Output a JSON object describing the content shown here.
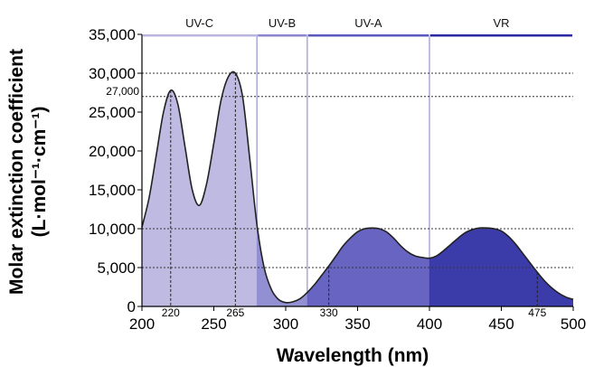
{
  "chart_data": {
    "type": "area",
    "xlabel": "Wavelength (nm)",
    "ylabel_line1": "Molar extinction coefficient",
    "ylabel_line2": "(L·mol⁻¹·cm⁻¹)",
    "xlim": [
      200,
      500
    ],
    "ylim": [
      0,
      35000
    ],
    "x_ticks": [
      200,
      250,
      300,
      350,
      400,
      450,
      500
    ],
    "y_ticks": [
      0,
      5000,
      10000,
      15000,
      20000,
      25000,
      30000,
      35000
    ],
    "y_tick_labels": [
      "0",
      "5,000",
      "10,000",
      "15,000",
      "20,000",
      "25,000",
      "30,000",
      "35,000"
    ],
    "x": [
      200,
      205,
      210,
      215,
      220,
      225,
      230,
      235,
      240,
      245,
      250,
      255,
      260,
      265,
      270,
      275,
      280,
      285,
      290,
      295,
      300,
      305,
      310,
      315,
      320,
      325,
      330,
      335,
      340,
      345,
      350,
      355,
      360,
      365,
      370,
      375,
      380,
      385,
      390,
      395,
      400,
      405,
      410,
      415,
      420,
      425,
      430,
      435,
      440,
      445,
      450,
      455,
      460,
      465,
      470,
      475,
      480,
      485,
      490,
      495,
      500
    ],
    "y": [
      10200,
      14000,
      19500,
      25000,
      27800,
      26000,
      20500,
      15000,
      13000,
      15800,
      21000,
      26500,
      29500,
      30000,
      27000,
      19000,
      10500,
      5000,
      2200,
      900,
      500,
      600,
      1000,
      1800,
      2800,
      4000,
      5200,
      6500,
      7800,
      8800,
      9600,
      10000,
      10100,
      10000,
      9600,
      8800,
      7800,
      7000,
      6500,
      6300,
      6200,
      6500,
      7200,
      8000,
      8800,
      9500,
      9900,
      10100,
      10100,
      10000,
      9700,
      9000,
      8000,
      6800,
      5600,
      4400,
      3300,
      2400,
      1700,
      1200,
      900
    ],
    "bands": [
      {
        "label": "UV-C",
        "from": 200,
        "to": 280,
        "color": "#b9b4e0"
      },
      {
        "label": "UV-B",
        "from": 280,
        "to": 315,
        "color": "#8a85cf"
      },
      {
        "label": "UV-A",
        "from": 315,
        "to": 400,
        "color": "#5a57bd"
      },
      {
        "label": "VR",
        "from": 400,
        "to": 500,
        "color": "#2b2aa3"
      }
    ],
    "annotations": [
      {
        "label": "220",
        "x": 220
      },
      {
        "label": "265",
        "x": 265
      },
      {
        "label": "330",
        "x": 330
      },
      {
        "label": "475",
        "x": 475
      }
    ],
    "y_annotation": {
      "label": "27,000",
      "y": 27000
    },
    "reference_lines_y": [
      30000,
      27000,
      10000,
      5000
    ]
  }
}
